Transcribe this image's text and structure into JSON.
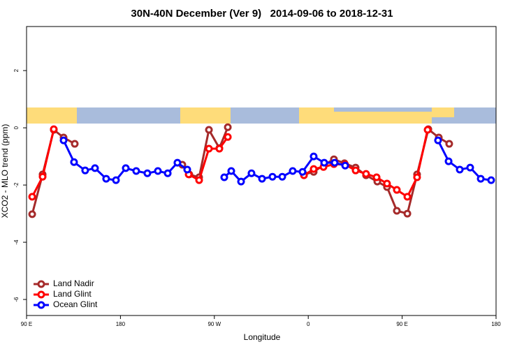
{
  "chart_data": {
    "type": "line",
    "title": "30N-40N December (Ver 9)   2014-09-06 to 2018-12-31",
    "x_label": "Longitude",
    "y_label": "XCO2 - MLO trend (ppm)",
    "xlim": [
      90,
      540
    ],
    "xticks": [
      {
        "value": 90,
        "label": "90 E"
      },
      {
        "value": 180,
        "label": "180"
      },
      {
        "value": 270,
        "label": "90 W"
      },
      {
        "value": 360,
        "label": "0"
      },
      {
        "value": 450,
        "label": "90 E"
      },
      {
        "value": 540,
        "label": "180"
      }
    ],
    "ylim": [
      -6.56,
      3.54
    ],
    "yticks": [
      2,
      0,
      -2,
      -4,
      -6
    ],
    "legend": "bottom-left",
    "series": [
      {
        "name": "Land Nadir",
        "color": "#a52a2a",
        "x": [
          95.4,
          105.4,
          116.1,
          125.5,
          136.2,
          null,
          239.3,
          246,
          255.4,
          264.8,
          274.8,
          282.9,
          null,
          355.9,
          365.2,
          375.3,
          384.6,
          394.7,
          405.4,
          415.4,
          426.2,
          435.5,
          444.9,
          455.0,
          464.3,
          475.1,
          485.1,
          495.1
        ],
        "values": [
          -3.02,
          -1.63,
          -0.07,
          -0.34,
          -0.56,
          null,
          -1.29,
          -1.63,
          -1.73,
          -0.07,
          -0.71,
          0.02,
          null,
          -1.63,
          -1.54,
          -1.29,
          -1.1,
          -1.24,
          -1.39,
          -1.66,
          -1.88,
          -2.07,
          -2.9,
          -3.0,
          -1.63,
          -0.05,
          -0.34,
          -0.56
        ]
      },
      {
        "name": "Land Glint",
        "color": "#ff0000",
        "x": [
          95.4,
          105.4,
          116.1,
          null,
          245.4,
          255.4,
          264.8,
          274.8,
          282.9,
          null,
          355.9,
          365.2,
          374.6,
          384.6,
          395.4,
          405.4,
          415.4,
          425.5,
          435.5,
          444.9,
          455.0,
          464.3,
          474.4
        ],
        "values": [
          -2.41,
          -1.71,
          -0.05,
          null,
          -1.63,
          -1.83,
          -0.73,
          -0.73,
          -0.32,
          null,
          -1.66,
          -1.44,
          -1.37,
          -1.27,
          -1.29,
          -1.49,
          -1.61,
          -1.73,
          -1.95,
          -2.17,
          -2.41,
          -1.73,
          -0.07
        ]
      },
      {
        "name": "Ocean Glint",
        "color": "#0000ff",
        "x": [
          125.5,
          135.5,
          146.2,
          155.6,
          166.3,
          175.7,
          185.1,
          195.1,
          205.8,
          215.9,
          225.3,
          234.6,
          244.0,
          null,
          279.5,
          286.2,
          295.6,
          305.6,
          315.7,
          325.7,
          335.1,
          345.1,
          354.5,
          365.2,
          375.3,
          385.3,
          395.4,
          null,
          484.4,
          494.5,
          505.2,
          515.2,
          525.3,
          535.3
        ],
        "values": [
          -0.44,
          -1.2,
          -1.49,
          -1.41,
          -1.78,
          -1.83,
          -1.41,
          -1.51,
          -1.59,
          -1.51,
          -1.59,
          -1.22,
          -1.46,
          null,
          -1.73,
          -1.51,
          -1.88,
          -1.59,
          -1.78,
          -1.71,
          -1.71,
          -1.51,
          -1.54,
          -1.0,
          -1.22,
          -1.22,
          -1.32,
          null,
          -0.44,
          -1.17,
          -1.46,
          -1.39,
          -1.78,
          -1.83
        ]
      }
    ]
  }
}
